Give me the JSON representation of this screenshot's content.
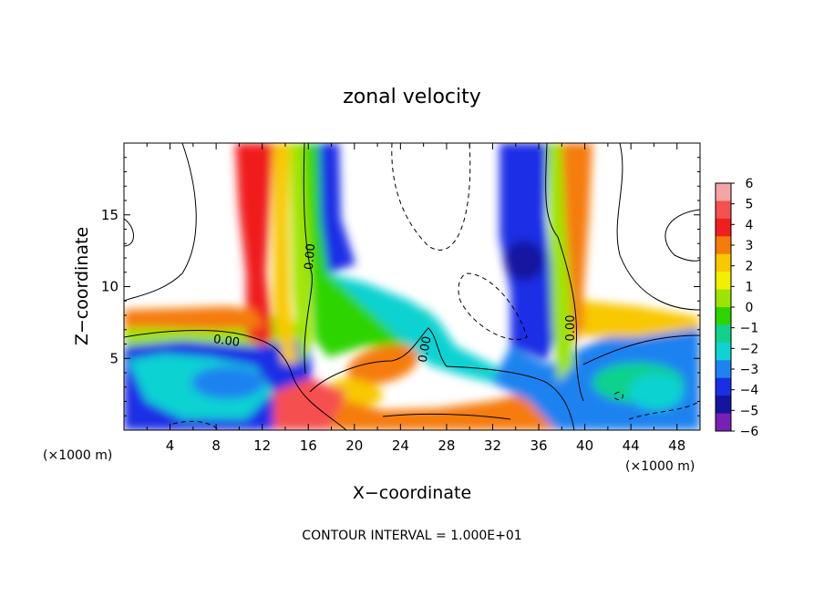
{
  "chart_data": {
    "type": "heatmap",
    "title": "zonal velocity",
    "xlabel": "X−coordinate",
    "ylabel": "Z−coordinate",
    "x_unit": "(×1000 m)",
    "y_unit": "(×1000 m)",
    "footer": "CONTOUR INTERVAL = 1.000E+01",
    "xlim": [
      0,
      50
    ],
    "ylim": [
      0,
      20
    ],
    "x_ticks": [
      "4",
      "8",
      "12",
      "16",
      "20",
      "24",
      "28",
      "32",
      "36",
      "40",
      "44",
      "48"
    ],
    "y_ticks": [
      "5",
      "10",
      "15"
    ],
    "contour_label": "0.00",
    "colorbar": {
      "ticks": [
        "6",
        "5",
        "4",
        "3",
        "2",
        "1",
        "0",
        "−1",
        "−2",
        "−3",
        "−4",
        "−5",
        "−6"
      ],
      "colors": [
        "#f4a6a6",
        "#f65050",
        "#f01e1e",
        "#f57c0a",
        "#f8c800",
        "#f0f000",
        "#9ee400",
        "#2ed400",
        "#0fd28c",
        "#0fd2d2",
        "#1e82f0",
        "#1a2ee6",
        "#1414a0",
        "#7820b4"
      ]
    }
  }
}
